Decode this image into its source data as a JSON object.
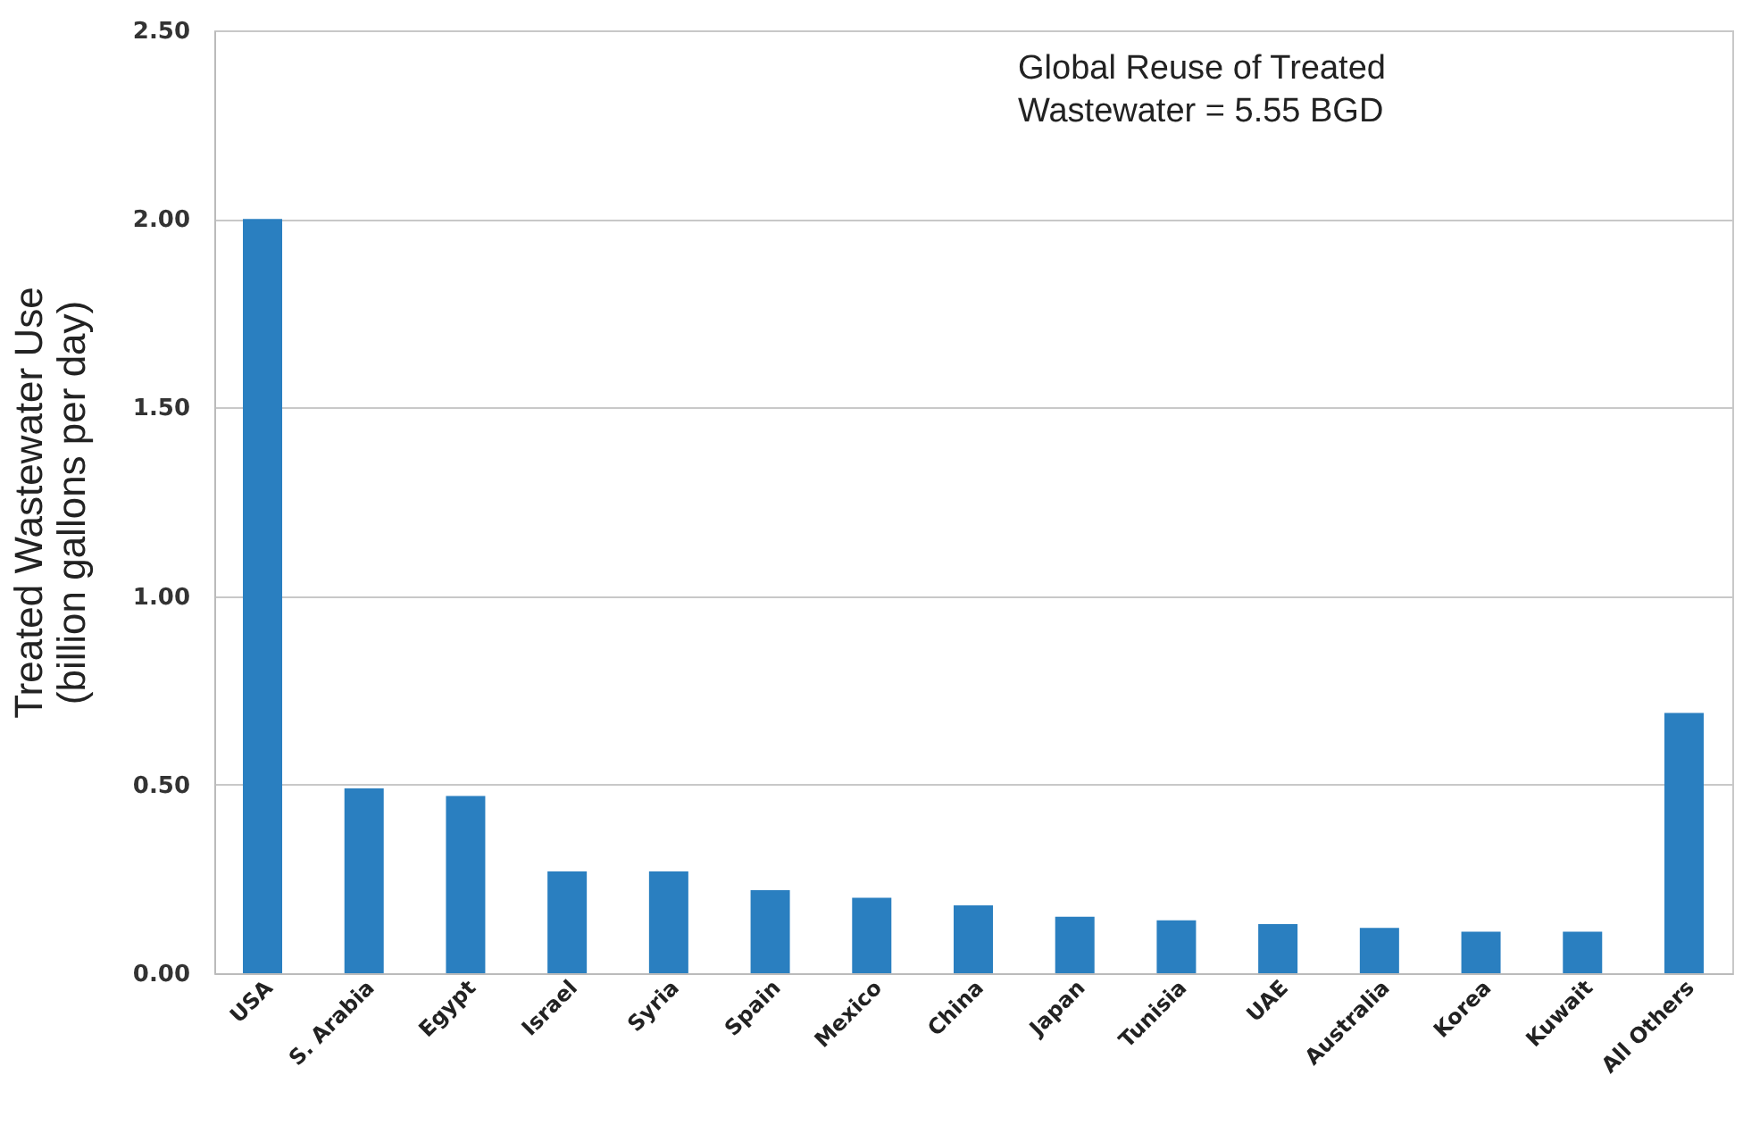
{
  "chart_data": {
    "type": "bar",
    "ylabel": "Treated Wastewater Use\n(billion gallons per day)",
    "annotations": [
      "Global Reuse of Treated\nWastewater  = 5.55 BGD"
    ],
    "categories": [
      "USA",
      "S. Arabia",
      "Egypt",
      "Israel",
      "Syria",
      "Spain",
      "Mexico",
      "China",
      "Japan",
      "Tunisia",
      "UAE",
      "Australia",
      "Korea",
      "Kuwait",
      "All Others"
    ],
    "values": [
      2.0,
      0.49,
      0.47,
      0.27,
      0.27,
      0.22,
      0.2,
      0.18,
      0.15,
      0.14,
      0.13,
      0.12,
      0.11,
      0.11,
      0.69
    ],
    "color": "#2a7fc0",
    "ylim": [
      0,
      2.5
    ],
    "yticks": [
      {
        "value": 0,
        "label": "0.00"
      },
      {
        "value": 0.5,
        "label": "0.50"
      },
      {
        "value": 1,
        "label": "1.00"
      },
      {
        "value": 1.5,
        "label": "1.50"
      },
      {
        "value": 2,
        "label": "2.00"
      },
      {
        "value": 2.5,
        "label": "2.50"
      }
    ],
    "grid": "y"
  }
}
